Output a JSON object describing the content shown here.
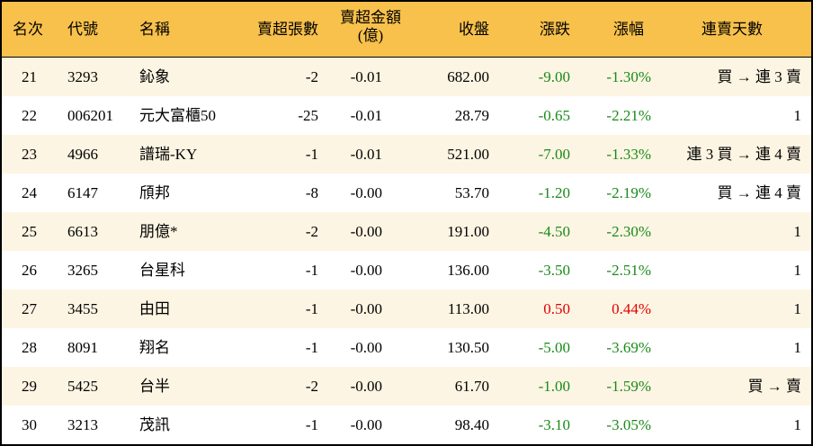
{
  "colors": {
    "header_bg": "#F8C14C",
    "odd_row_bg": "#FDF5E3",
    "down": "#1a8a1a",
    "up": "#e00000"
  },
  "headers": {
    "rank": "名次",
    "code": "代號",
    "name": "名稱",
    "net_sell_shares": "賣超張數",
    "net_sell_amount": "賣超金額",
    "net_sell_amount_unit": "(億)",
    "close": "收盤",
    "change": "漲跌",
    "change_pct": "漲幅",
    "consecutive": "連賣天數"
  },
  "rows": [
    {
      "rank": "21",
      "code": "3293",
      "name": "鈊象",
      "shares": "-2",
      "amount": "-0.01",
      "close": "682.00",
      "change": "-9.00",
      "pct": "-1.30%",
      "dir": "down",
      "consecutive": "買 → 連 3 賣"
    },
    {
      "rank": "22",
      "code": "006201",
      "name": "元大富櫃50",
      "shares": "-25",
      "amount": "-0.01",
      "close": "28.79",
      "change": "-0.65",
      "pct": "-2.21%",
      "dir": "down",
      "consecutive": "1"
    },
    {
      "rank": "23",
      "code": "4966",
      "name": "譜瑞-KY",
      "shares": "-1",
      "amount": "-0.01",
      "close": "521.00",
      "change": "-7.00",
      "pct": "-1.33%",
      "dir": "down",
      "consecutive": "連 3 買 → 連 4 賣"
    },
    {
      "rank": "24",
      "code": "6147",
      "name": "頎邦",
      "shares": "-8",
      "amount": "-0.00",
      "close": "53.70",
      "change": "-1.20",
      "pct": "-2.19%",
      "dir": "down",
      "consecutive": "買 → 連 4 賣"
    },
    {
      "rank": "25",
      "code": "6613",
      "name": "朋億*",
      "shares": "-2",
      "amount": "-0.00",
      "close": "191.00",
      "change": "-4.50",
      "pct": "-2.30%",
      "dir": "down",
      "consecutive": "1"
    },
    {
      "rank": "26",
      "code": "3265",
      "name": "台星科",
      "shares": "-1",
      "amount": "-0.00",
      "close": "136.00",
      "change": "-3.50",
      "pct": "-2.51%",
      "dir": "down",
      "consecutive": "1"
    },
    {
      "rank": "27",
      "code": "3455",
      "name": "由田",
      "shares": "-1",
      "amount": "-0.00",
      "close": "113.00",
      "change": "0.50",
      "pct": "0.44%",
      "dir": "up",
      "consecutive": "1"
    },
    {
      "rank": "28",
      "code": "8091",
      "name": "翔名",
      "shares": "-1",
      "amount": "-0.00",
      "close": "130.50",
      "change": "-5.00",
      "pct": "-3.69%",
      "dir": "down",
      "consecutive": "1"
    },
    {
      "rank": "29",
      "code": "5425",
      "name": "台半",
      "shares": "-2",
      "amount": "-0.00",
      "close": "61.70",
      "change": "-1.00",
      "pct": "-1.59%",
      "dir": "down",
      "consecutive": "買 → 賣"
    },
    {
      "rank": "30",
      "code": "3213",
      "name": "茂訊",
      "shares": "-1",
      "amount": "-0.00",
      "close": "98.40",
      "change": "-3.10",
      "pct": "-3.05%",
      "dir": "down",
      "consecutive": "1"
    }
  ]
}
